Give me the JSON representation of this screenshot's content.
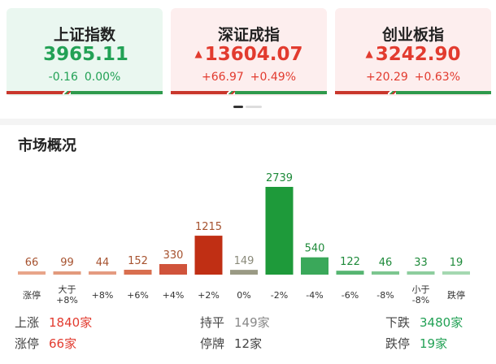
{
  "indices": [
    {
      "name": "上证指数",
      "price": "3965.11",
      "arrow": "",
      "change": "-0.16",
      "pct": "0.00%",
      "color": "#22a155",
      "bg": "green"
    },
    {
      "name": "深证成指",
      "price": "13604.07",
      "arrow": "▲",
      "change": "+66.97",
      "pct": "+0.49%",
      "color": "#e23b2f",
      "bg": "red"
    },
    {
      "name": "创业板指",
      "price": "3242.90",
      "arrow": "▲",
      "change": "+20.29",
      "pct": "+0.63%",
      "color": "#e23b2f",
      "bg": "red"
    }
  ],
  "section_title": "市场概况",
  "chart_data": {
    "type": "bar",
    "categories": [
      "涨停",
      "大于+8%",
      "+8%",
      "+6%",
      "+4%",
      "+2%",
      "0%",
      "-2%",
      "-4%",
      "-6%",
      "-8%",
      "小于-8%",
      "跌停"
    ],
    "category_lines": [
      [
        "涨停"
      ],
      [
        "大于",
        "+8%"
      ],
      [
        "+8%"
      ],
      [
        "+6%"
      ],
      [
        "+4%"
      ],
      [
        "+2%"
      ],
      [
        "0%"
      ],
      [
        "-2%"
      ],
      [
        "-4%"
      ],
      [
        "-6%"
      ],
      [
        "-8%"
      ],
      [
        "小于",
        "-8%"
      ],
      [
        "跌停"
      ]
    ],
    "values": [
      66,
      99,
      44,
      152,
      330,
      1215,
      149,
      2739,
      540,
      122,
      46,
      33,
      19
    ],
    "colors": [
      "#e8a58a",
      "#e29a7c",
      "#e49b80",
      "#d96f4f",
      "#d0533b",
      "#c02f14",
      "#9a9a84",
      "#1e9a3a",
      "#3aa85a",
      "#56b571",
      "#7cc68f",
      "#8dcd9e",
      "#a4d8b1"
    ],
    "label_colors": [
      "#a6522f",
      "#a6522f",
      "#a6522f",
      "#a6522f",
      "#a6522f",
      "#a6522f",
      "#8a8a7a",
      "#1e8a3a",
      "#1e8a3a",
      "#1e8a3a",
      "#1e8a3a",
      "#1e8a3a",
      "#1e8a3a"
    ]
  },
  "stats": {
    "up_label": "上涨",
    "up_value": "1840家",
    "flat_label": "持平",
    "flat_value": "149家",
    "down_label": "下跌",
    "down_value": "3480家",
    "limit_up_label": "涨停",
    "limit_up_value": "66家",
    "suspended_label": "停牌",
    "suspended_value": "12家",
    "limit_down_label": "跌停",
    "limit_down_value": "19家"
  }
}
